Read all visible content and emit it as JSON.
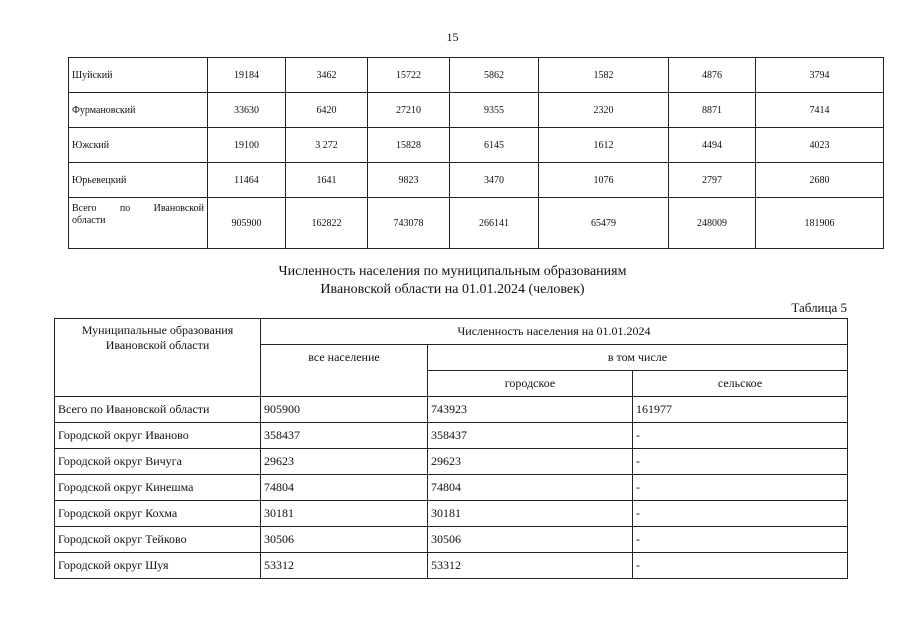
{
  "page_number": "15",
  "table_top": {
    "rows": [
      {
        "name": "Шуйский",
        "values": [
          "19184",
          "3462",
          "15722",
          "5862",
          "1582",
          "4876",
          "3794"
        ]
      },
      {
        "name": "Фурмановский",
        "values": [
          "33630",
          "6420",
          "27210",
          "9355",
          "2320",
          "8871",
          "7414"
        ]
      },
      {
        "name": "Южский",
        "values": [
          "19100",
          "3 272",
          "15828",
          "6145",
          "1612",
          "4494",
          "4023"
        ]
      },
      {
        "name": "Юрьевецкий",
        "values": [
          "11464",
          "1641",
          "9823",
          "3470",
          "1076",
          "2797",
          "2680"
        ]
      },
      {
        "name": "Всего по Ивановской области",
        "name_line1": "Всего по Ивановской",
        "name_line2": "области",
        "values": [
          "905900",
          "162822",
          "743078",
          "266141",
          "65479",
          "248009",
          "181906"
        ]
      }
    ]
  },
  "title": {
    "line1": "Численность населения по муниципальным образованиям",
    "line2": "Ивановской области на 01.01.2024 (человек)"
  },
  "table_label": "Таблица 5",
  "table5": {
    "headers": {
      "municipality": "Муниципальные образования Ивановской области",
      "population": "Численность населения на 01.01.2024",
      "total": "все население",
      "including": "в том числе",
      "urban": "городское",
      "rural": "сельское"
    },
    "rows": [
      {
        "name": "Всего по Ивановской области",
        "total": "905900",
        "urban": "743923",
        "rural": "161977"
      },
      {
        "name": "Городской округ Иваново",
        "total": "358437",
        "urban": "358437",
        "rural": "-"
      },
      {
        "name": "Городской округ Вичуга",
        "total": "29623",
        "urban": "29623",
        "rural": "-"
      },
      {
        "name": "Городской округ Кинешма",
        "total": "74804",
        "urban": "74804",
        "rural": "-"
      },
      {
        "name": "Городской округ Кохма",
        "total": "30181",
        "urban": "30181",
        "rural": "-"
      },
      {
        "name": "Городской округ Тейково",
        "total": "30506",
        "urban": "30506",
        "rural": "-"
      },
      {
        "name": "Городской округ Шуя",
        "total": "53312",
        "urban": "53312",
        "rural": "-"
      }
    ]
  }
}
